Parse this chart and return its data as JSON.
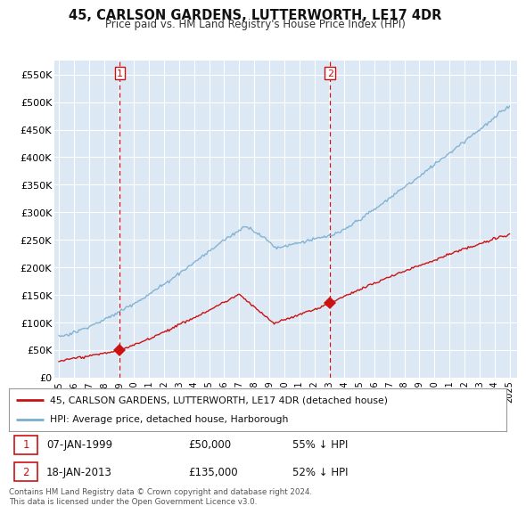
{
  "title": "45, CARLSON GARDENS, LUTTERWORTH, LE17 4DR",
  "subtitle": "Price paid vs. HM Land Registry's House Price Index (HPI)",
  "background_color": "#ffffff",
  "plot_bg_color": "#dce9f5",
  "grid_color": "#ffffff",
  "hpi_color": "#7aadcf",
  "price_color": "#cc1111",
  "vline_color": "#cc1111",
  "ylim": [
    0,
    575000
  ],
  "yticks": [
    0,
    50000,
    100000,
    150000,
    200000,
    250000,
    300000,
    350000,
    400000,
    450000,
    500000,
    550000
  ],
  "sale1_date_num": 1999.05,
  "sale1_price": 50000,
  "sale1_label": "1",
  "sale2_date_num": 2013.05,
  "sale2_price": 135000,
  "sale2_label": "2",
  "legend_line1": "45, CARLSON GARDENS, LUTTERWORTH, LE17 4DR (detached house)",
  "legend_line2": "HPI: Average price, detached house, Harborough",
  "footer": "Contains HM Land Registry data © Crown copyright and database right 2024.\nThis data is licensed under the Open Government Licence v3.0.",
  "xmin": 1994.7,
  "xmax": 2025.5
}
